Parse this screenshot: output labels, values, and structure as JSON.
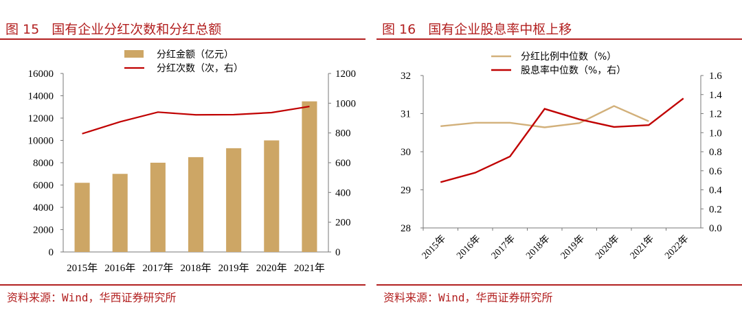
{
  "fig15": {
    "number": "图 15",
    "title": "国有企业分红次数和分红总额",
    "source": "资料来源：Wind，华西证券研究所"
  },
  "fig16": {
    "number": "图 16",
    "title": "国有企业股息率中枢上移",
    "source": "资料来源：Wind，华西证券研究所"
  },
  "colors": {
    "accent": "#b21f1f",
    "bar": "#cda665",
    "line_red": "#c00000",
    "line_tan": "#d2b07a"
  },
  "chart_data": [
    {
      "type": "bar",
      "categories": [
        "2015年",
        "2016年",
        "2017年",
        "2018年",
        "2019年",
        "2020年",
        "2021年"
      ],
      "series": [
        {
          "name": "分红金额（亿元）",
          "type": "bar",
          "axis": "left",
          "values": [
            6200,
            7000,
            8000,
            8500,
            9300,
            10000,
            13500
          ]
        },
        {
          "name": "分红次数（次，右）",
          "type": "line",
          "axis": "right",
          "values": [
            795,
            875,
            940,
            922,
            923,
            937,
            978
          ]
        }
      ],
      "ylim_left": [
        0,
        16000
      ],
      "yticks_left": [
        0,
        2000,
        4000,
        6000,
        8000,
        10000,
        12000,
        14000,
        16000
      ],
      "ylim_right": [
        0,
        1200
      ],
      "yticks_right": [
        0,
        200,
        400,
        600,
        800,
        1000,
        1200
      ],
      "legend": "top-center",
      "grid": false
    },
    {
      "type": "line",
      "categories": [
        "2015年",
        "2016年",
        "2017年",
        "2018年",
        "2019年",
        "2020年",
        "2021年",
        "2022年"
      ],
      "series": [
        {
          "name": "分红比例中位数（%）",
          "axis": "left",
          "values": [
            30.67,
            30.76,
            30.76,
            30.64,
            30.75,
            31.2,
            30.8,
            null
          ]
        },
        {
          "name": "股息率中位数（%，右）",
          "axis": "right",
          "values": [
            0.48,
            0.58,
            0.75,
            1.25,
            1.14,
            1.06,
            1.08,
            1.36
          ]
        }
      ],
      "ylim_left": [
        28,
        32
      ],
      "yticks_left": [
        28,
        29,
        30,
        31,
        32
      ],
      "ylim_right": [
        0.0,
        1.6
      ],
      "yticks_right": [
        "0.0",
        "0.2",
        "0.4",
        "0.6",
        "0.8",
        "1.0",
        "1.2",
        "1.4",
        "1.6"
      ],
      "legend": "top-center",
      "grid": false
    }
  ]
}
